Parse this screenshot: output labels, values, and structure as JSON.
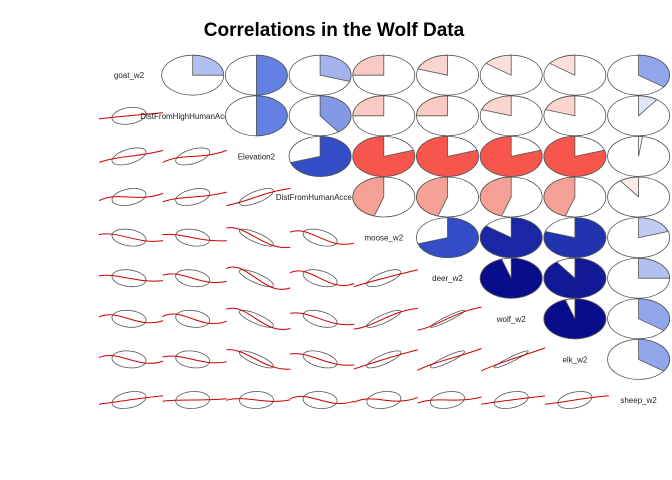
{
  "chart_data": {
    "type": "correlogram",
    "title": "Correlations in the Wolf Data",
    "labels": [
      "goat_w2",
      "DistFromHighHumanAccess2",
      "Elevation2",
      "DistFromHumanAccess2",
      "moose_w2",
      "deer_w2",
      "wolf_w2",
      "elk_w2",
      "sheep_w2"
    ],
    "upper_panel": "pie",
    "lower_panel": "ellipse with smoothed fit line",
    "correlations": [
      [
        1.0,
        0.25,
        0.5,
        0.3,
        -0.25,
        -0.2,
        -0.15,
        -0.15,
        0.35
      ],
      [
        0.25,
        1.0,
        0.5,
        0.4,
        -0.25,
        -0.25,
        -0.2,
        -0.2,
        0.1
      ],
      [
        0.5,
        0.5,
        1.0,
        0.7,
        -0.8,
        -0.8,
        -0.8,
        -0.8,
        0.02
      ],
      [
        0.3,
        0.4,
        0.7,
        1.0,
        -0.45,
        -0.45,
        -0.45,
        -0.45,
        -0.1
      ],
      [
        -0.25,
        -0.25,
        -0.8,
        -0.45,
        1.0,
        0.7,
        0.85,
        0.8,
        0.2
      ],
      [
        -0.2,
        -0.25,
        -0.8,
        -0.45,
        0.7,
        1.0,
        0.95,
        0.9,
        0.25
      ],
      [
        -0.15,
        -0.2,
        -0.8,
        -0.45,
        0.85,
        0.95,
        1.0,
        0.95,
        0.35
      ],
      [
        -0.15,
        -0.2,
        -0.8,
        -0.45,
        0.8,
        0.9,
        0.95,
        1.0,
        0.35
      ],
      [
        0.35,
        0.1,
        0.02,
        -0.1,
        0.2,
        0.25,
        0.35,
        0.35,
        1.0
      ]
    ],
    "color_scale": {
      "negative_strong": "#FF2A2A",
      "neutral": "#FFFFFF",
      "positive_strong": "#000080",
      "outline": "#555555",
      "fit_line": "#CC0000"
    }
  }
}
